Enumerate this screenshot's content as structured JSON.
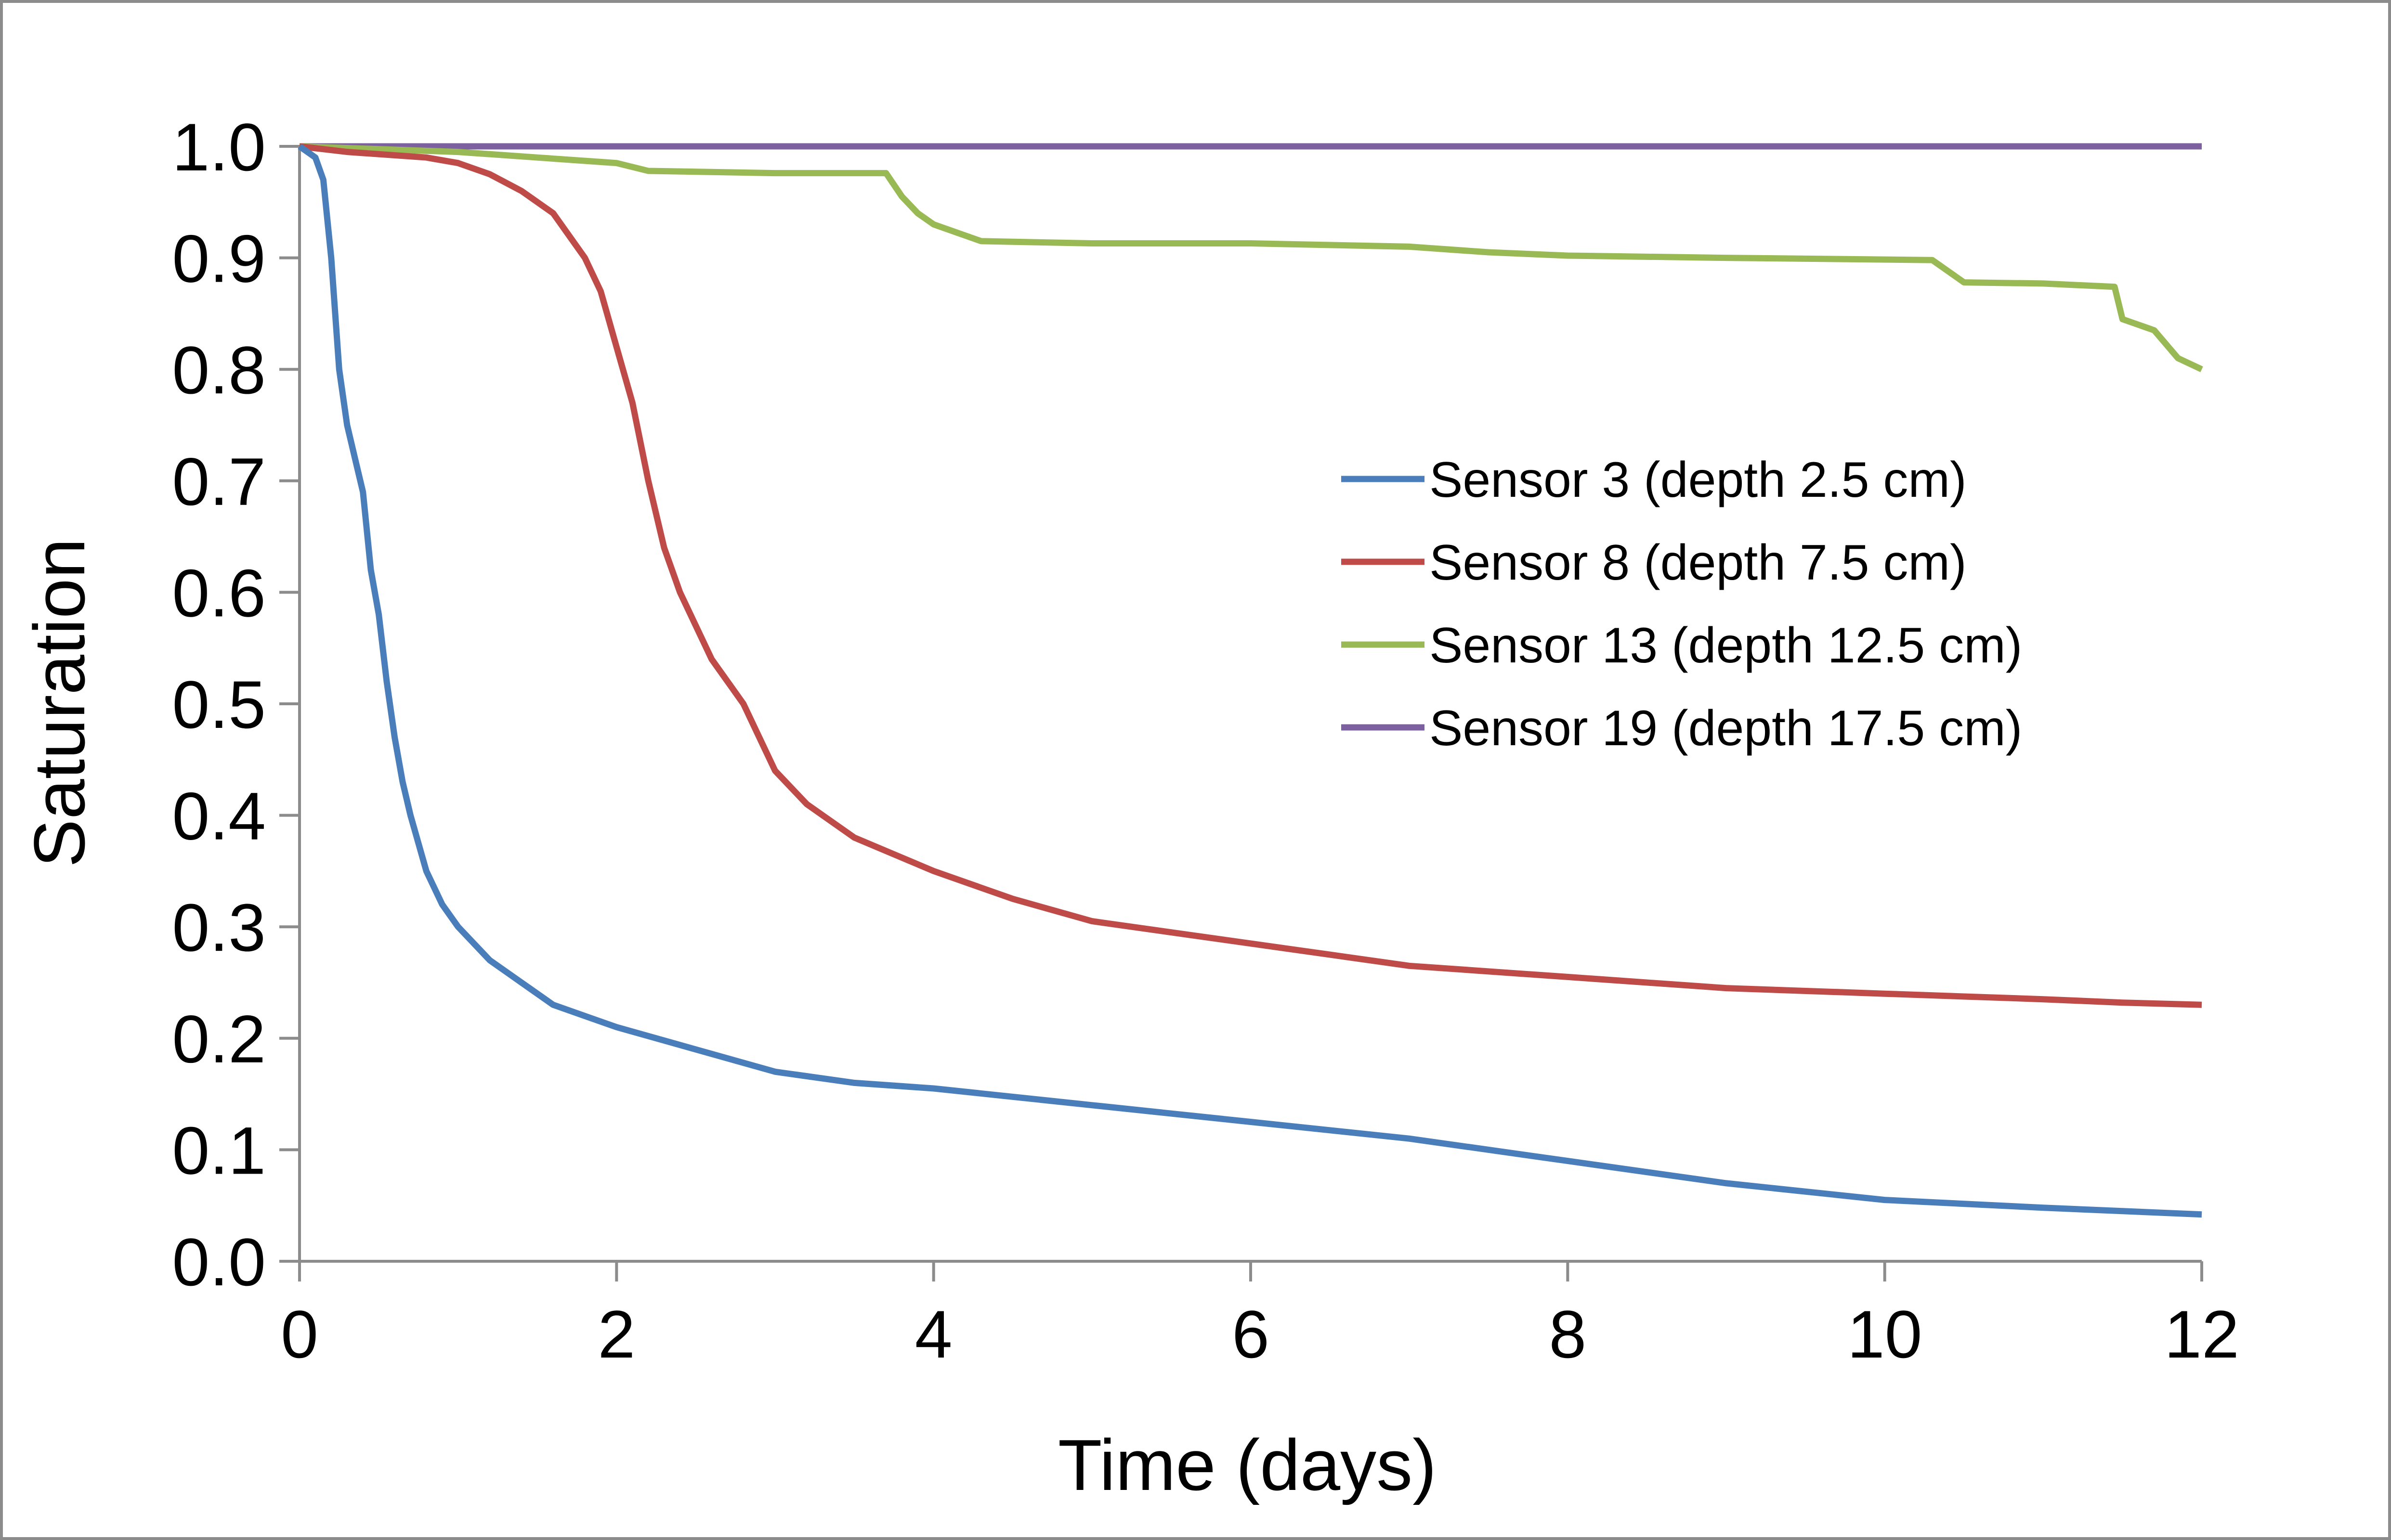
{
  "chart_data": {
    "type": "line",
    "title": "",
    "xlabel": "Time (days)",
    "ylabel": "Saturation",
    "xlim": [
      0,
      12
    ],
    "ylim": [
      0.0,
      1.0
    ],
    "xticks": [
      "0",
      "2",
      "4",
      "6",
      "8",
      "10",
      "12"
    ],
    "yticks": [
      "0.0",
      "0.1",
      "0.2",
      "0.3",
      "0.4",
      "0.5",
      "0.6",
      "0.7",
      "0.8",
      "0.9",
      "1.0"
    ],
    "grid": false,
    "legend_position": "right",
    "series": [
      {
        "name": "Sensor 3 (depth 2.5 cm)",
        "color": "#4a7ebb",
        "x": [
          0,
          0.1,
          0.15,
          0.2,
          0.25,
          0.3,
          0.35,
          0.4,
          0.45,
          0.5,
          0.55,
          0.6,
          0.65,
          0.7,
          0.8,
          0.9,
          1.0,
          1.2,
          1.4,
          1.6,
          1.8,
          2.0,
          2.5,
          3.0,
          3.5,
          4.0,
          5.0,
          6.0,
          7.0,
          8.0,
          9.0,
          10.0,
          11.0,
          12.0
        ],
        "y": [
          1.0,
          0.99,
          0.97,
          0.9,
          0.8,
          0.75,
          0.72,
          0.69,
          0.62,
          0.58,
          0.52,
          0.47,
          0.43,
          0.4,
          0.35,
          0.32,
          0.3,
          0.27,
          0.25,
          0.23,
          0.22,
          0.21,
          0.19,
          0.17,
          0.16,
          0.155,
          0.14,
          0.125,
          0.11,
          0.09,
          0.07,
          0.055,
          0.048,
          0.042
        ]
      },
      {
        "name": "Sensor 8 (depth 7.5 cm)",
        "color": "#be4b48",
        "x": [
          0,
          0.3,
          0.8,
          1.0,
          1.2,
          1.4,
          1.6,
          1.8,
          1.9,
          2.0,
          2.1,
          2.2,
          2.3,
          2.4,
          2.6,
          2.8,
          3.0,
          3.2,
          3.5,
          4.0,
          4.5,
          5.0,
          5.5,
          6.0,
          6.5,
          7.0,
          8.0,
          9.0,
          10.0,
          11.0,
          11.5,
          12.0
        ],
        "y": [
          1.0,
          0.995,
          0.99,
          0.985,
          0.975,
          0.96,
          0.94,
          0.9,
          0.87,
          0.82,
          0.77,
          0.7,
          0.64,
          0.6,
          0.54,
          0.5,
          0.44,
          0.41,
          0.38,
          0.35,
          0.325,
          0.305,
          0.295,
          0.285,
          0.275,
          0.265,
          0.255,
          0.245,
          0.24,
          0.235,
          0.232,
          0.23
        ]
      },
      {
        "name": "Sensor 13 (depth 12.5 cm)",
        "color": "#98b954",
        "x": [
          0,
          1.0,
          1.5,
          2.0,
          2.2,
          3.0,
          3.7,
          3.8,
          3.9,
          4.0,
          4.3,
          5.0,
          6.0,
          7.0,
          7.5,
          8.0,
          9.0,
          10.3,
          10.5,
          11.0,
          11.45,
          11.5,
          11.7,
          11.85,
          12.0
        ],
        "y": [
          1.0,
          0.995,
          0.99,
          0.985,
          0.978,
          0.976,
          0.976,
          0.955,
          0.94,
          0.93,
          0.915,
          0.913,
          0.913,
          0.91,
          0.905,
          0.902,
          0.9,
          0.898,
          0.878,
          0.877,
          0.874,
          0.845,
          0.835,
          0.81,
          0.8
        ]
      },
      {
        "name": "Sensor 19 (depth 17.5 cm)",
        "color": "#7d60a0",
        "x": [
          0,
          12
        ],
        "y": [
          1.0,
          1.0
        ]
      }
    ]
  }
}
